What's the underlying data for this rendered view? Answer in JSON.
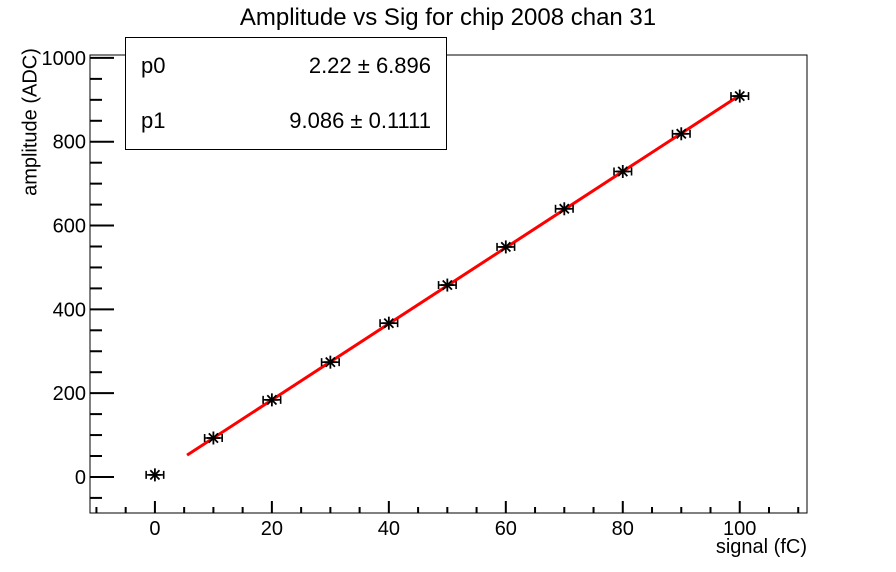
{
  "chart": {
    "title": "Amplitude vs Sig for chip 2008 chan 31",
    "x_axis": {
      "label": "signal (fC)",
      "major_ticks": [
        0,
        20,
        40,
        60,
        80,
        100
      ],
      "minor_step": 5,
      "range": [
        -11.1,
        111.5
      ]
    },
    "y_axis": {
      "label": "amplitude (ADC)",
      "major_ticks": [
        0,
        200,
        400,
        600,
        800,
        1000
      ],
      "minor_step": 50,
      "range": [
        -86,
        1007
      ]
    },
    "stats_box": {
      "rows": [
        {
          "name": "p0",
          "value": "2.22 ± 6.896"
        },
        {
          "name": "p1",
          "value": "9.086 ± 0.1111"
        }
      ]
    },
    "colors": {
      "fit_line": "#ff0000",
      "marker": "#000000",
      "frame": "#000000",
      "background": "#ffffff"
    }
  },
  "chart_data": {
    "type": "scatter",
    "title": "Amplitude vs Sig for chip 2008 chan 31",
    "xlabel": "signal (fC)",
    "ylabel": "amplitude (ADC)",
    "x": [
      0,
      10,
      20,
      30,
      40,
      50,
      60,
      70,
      80,
      90,
      100
    ],
    "y": [
      5,
      93,
      184,
      274,
      367,
      458,
      549,
      640,
      729,
      819,
      909
    ],
    "x_error": 1.5,
    "marker_style": "asterisk",
    "xlim": [
      -11.1,
      111.5
    ],
    "ylim": [
      -86,
      1007
    ],
    "grid": false,
    "legend_position": "stats box, top-left",
    "fit": {
      "type": "linear",
      "p0": 2.22,
      "p0_err": 6.896,
      "p1": 9.086,
      "p1_err": 0.1111,
      "x_range": [
        5.5,
        100
      ],
      "color": "#ff0000"
    }
  }
}
